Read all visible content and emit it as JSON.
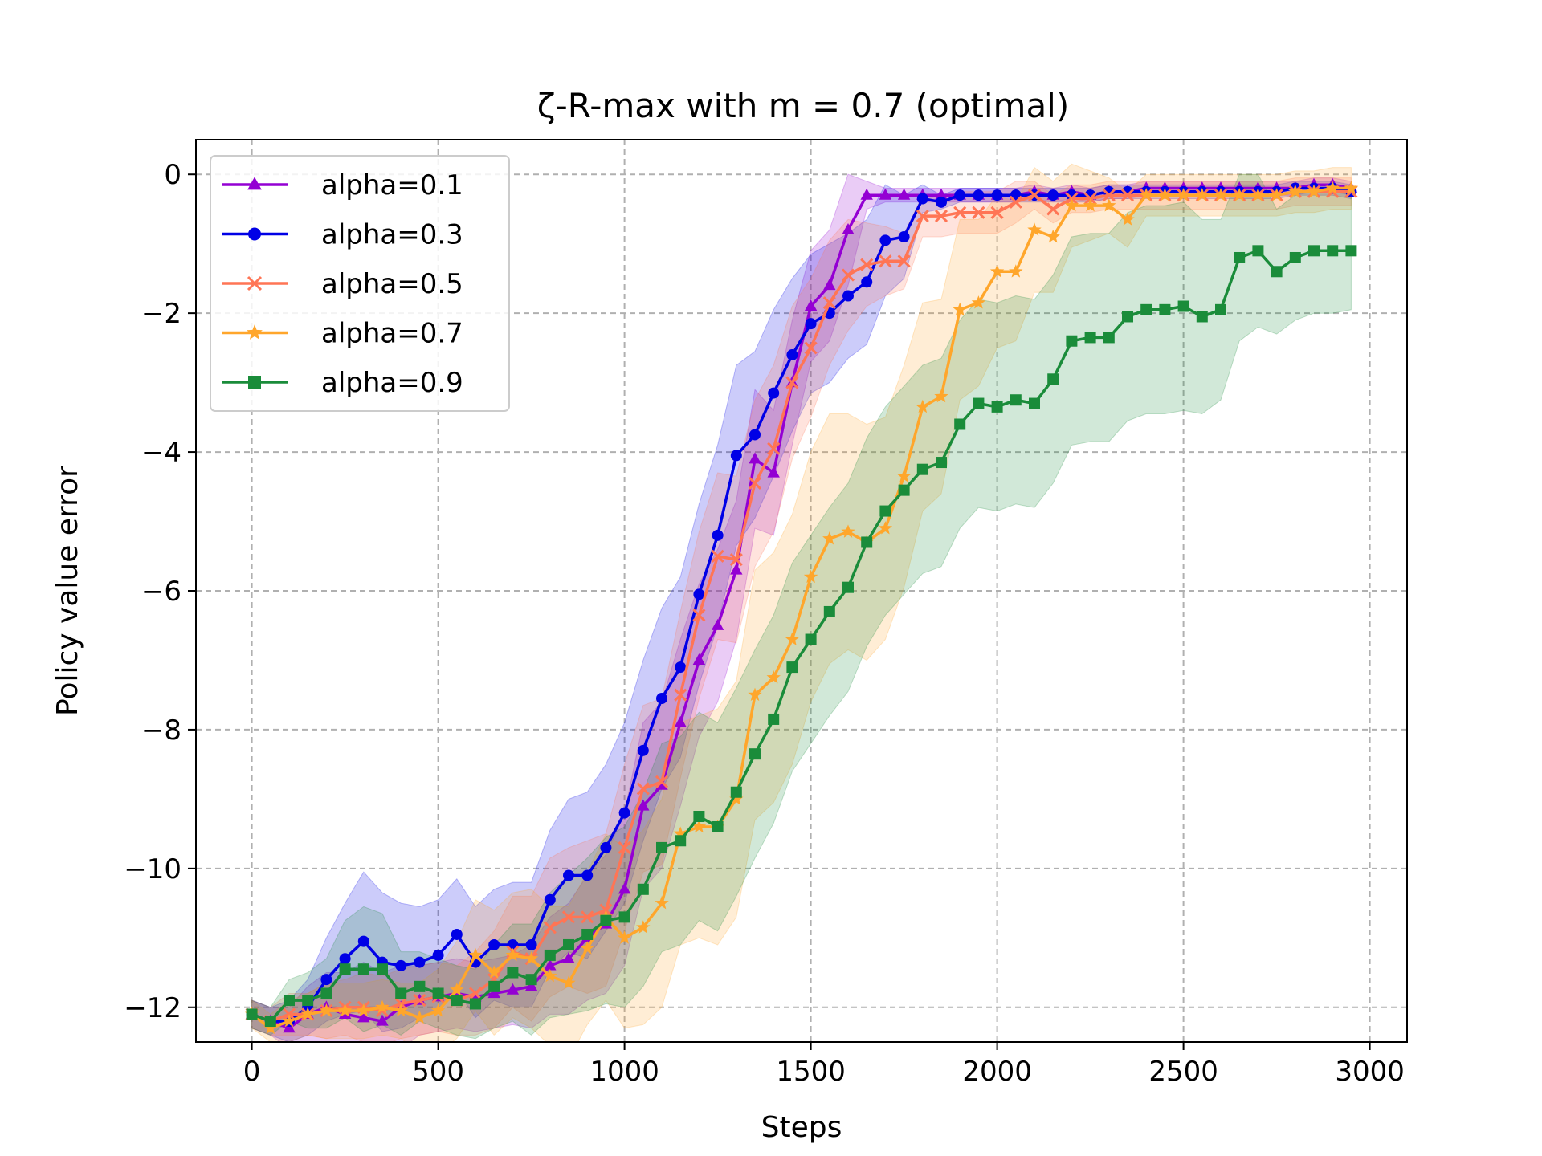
{
  "chart_data": {
    "type": "line",
    "title": "ζ-R-max with m = 0.7 (optimal)",
    "xlabel": "Steps",
    "ylabel": "Policy value error",
    "xlim": [
      -150,
      3100
    ],
    "ylim": [
      -12.5,
      0.5
    ],
    "xticks": [
      0,
      500,
      1000,
      1500,
      2000,
      2500,
      3000
    ],
    "yticks": [
      0,
      -2,
      -4,
      -6,
      -8,
      -10,
      -12
    ],
    "xtick_labels": [
      "0",
      "500",
      "1000",
      "1500",
      "2000",
      "2500",
      "3000"
    ],
    "ytick_labels": [
      "0",
      "−2",
      "−4",
      "−6",
      "−8",
      "−10",
      "−12"
    ],
    "grid": true,
    "legend_position": "upper-left",
    "x": [
      0,
      50,
      100,
      150,
      200,
      250,
      300,
      350,
      400,
      450,
      500,
      550,
      600,
      650,
      700,
      750,
      800,
      850,
      900,
      950,
      1000,
      1050,
      1100,
      1150,
      1200,
      1250,
      1300,
      1350,
      1400,
      1450,
      1500,
      1550,
      1600,
      1650,
      1700,
      1750,
      1800,
      1850,
      1900,
      1950,
      2000,
      2050,
      2100,
      2150,
      2200,
      2250,
      2300,
      2350,
      2400,
      2450,
      2500,
      2550,
      2600,
      2650,
      2700,
      2750,
      2800,
      2850,
      2900,
      2950
    ],
    "series": [
      {
        "name": "alpha=0.1",
        "color": "#9400D3",
        "marker": "triangle",
        "values": [
          -12.1,
          -12.2,
          -12.3,
          -12.1,
          -12.0,
          -12.1,
          -12.15,
          -12.2,
          -12.0,
          -11.9,
          -11.85,
          -11.8,
          -11.85,
          -11.8,
          -11.75,
          -11.7,
          -11.4,
          -11.3,
          -11.0,
          -10.8,
          -10.3,
          -9.1,
          -8.8,
          -7.9,
          -7.0,
          -6.5,
          -5.7,
          -4.1,
          -4.3,
          -3.0,
          -1.9,
          -1.6,
          -0.8,
          -0.3,
          -0.3,
          -0.3,
          -0.3,
          -0.3,
          -0.3,
          -0.3,
          -0.3,
          -0.3,
          -0.25,
          -0.3,
          -0.25,
          -0.3,
          -0.25,
          -0.25,
          -0.2,
          -0.2,
          -0.2,
          -0.2,
          -0.2,
          -0.2,
          -0.2,
          -0.2,
          -0.2,
          -0.15,
          -0.15,
          -0.2
        ],
        "band_halfwidth": [
          0.2,
          0.2,
          0.3,
          0.4,
          0.5,
          0.6,
          0.8,
          0.7,
          0.6,
          0.5,
          0.5,
          0.5,
          0.5,
          0.5,
          0.5,
          0.6,
          0.7,
          0.8,
          0.9,
          1.0,
          1.1,
          1.2,
          1.2,
          1.2,
          1.1,
          1.1,
          1.0,
          1.0,
          0.9,
          0.9,
          0.8,
          0.8,
          0.8,
          0.2,
          0.1,
          0.1,
          0.1,
          0.1,
          0.1,
          0.1,
          0.1,
          0.1,
          0.1,
          0.1,
          0.1,
          0.1,
          0.1,
          0.1,
          0.1,
          0.1,
          0.1,
          0.1,
          0.1,
          0.1,
          0.1,
          0.1,
          0.1,
          0.1,
          0.1,
          0.1
        ]
      },
      {
        "name": "alpha=0.3",
        "color": "#0000E6",
        "marker": "circle",
        "values": [
          -12.1,
          -12.2,
          -12.2,
          -12.0,
          -11.6,
          -11.3,
          -11.05,
          -11.35,
          -11.4,
          -11.35,
          -11.25,
          -10.95,
          -11.35,
          -11.1,
          -11.1,
          -11.1,
          -10.45,
          -10.1,
          -10.1,
          -9.7,
          -9.2,
          -8.3,
          -7.55,
          -7.1,
          -6.05,
          -5.2,
          -4.05,
          -3.75,
          -3.15,
          -2.6,
          -2.15,
          -2.0,
          -1.75,
          -1.55,
          -0.95,
          -0.9,
          -0.35,
          -0.4,
          -0.3,
          -0.3,
          -0.3,
          -0.3,
          -0.3,
          -0.3,
          -0.3,
          -0.3,
          -0.25,
          -0.25,
          -0.25,
          -0.25,
          -0.25,
          -0.25,
          -0.25,
          -0.25,
          -0.25,
          -0.25,
          -0.2,
          -0.2,
          -0.2,
          -0.25
        ],
        "band_halfwidth": [
          0.2,
          0.2,
          0.3,
          0.4,
          0.6,
          0.8,
          1.0,
          1.0,
          0.9,
          0.8,
          0.8,
          0.8,
          0.8,
          0.8,
          0.9,
          0.9,
          1.0,
          1.1,
          1.2,
          1.2,
          1.3,
          1.3,
          1.3,
          1.3,
          1.3,
          1.3,
          1.3,
          1.2,
          1.2,
          1.1,
          1.0,
          1.0,
          0.9,
          0.9,
          0.8,
          0.6,
          0.2,
          0.1,
          0.1,
          0.1,
          0.1,
          0.1,
          0.1,
          0.1,
          0.1,
          0.1,
          0.1,
          0.1,
          0.1,
          0.1,
          0.1,
          0.1,
          0.1,
          0.1,
          0.1,
          0.1,
          0.1,
          0.1,
          0.1,
          0.1
        ]
      },
      {
        "name": "alpha=0.5",
        "color": "#FF7555",
        "marker": "x",
        "values": [
          -12.1,
          -12.2,
          -12.1,
          -12.1,
          -12.05,
          -12.0,
          -12.0,
          -12.05,
          -11.95,
          -11.9,
          -11.85,
          -11.9,
          -11.8,
          -11.6,
          -11.2,
          -11.3,
          -10.85,
          -10.7,
          -10.7,
          -10.6,
          -9.7,
          -8.85,
          -8.75,
          -7.5,
          -6.35,
          -5.5,
          -5.55,
          -4.45,
          -3.95,
          -3.0,
          -2.5,
          -1.85,
          -1.45,
          -1.3,
          -1.25,
          -1.25,
          -0.6,
          -0.6,
          -0.55,
          -0.55,
          -0.55,
          -0.4,
          -0.3,
          -0.5,
          -0.35,
          -0.35,
          -0.3,
          -0.3,
          -0.3,
          -0.3,
          -0.3,
          -0.3,
          -0.3,
          -0.3,
          -0.3,
          -0.3,
          -0.25,
          -0.25,
          -0.25,
          -0.25
        ],
        "band_halfwidth": [
          0.2,
          0.2,
          0.3,
          0.3,
          0.4,
          0.4,
          0.5,
          0.5,
          0.5,
          0.5,
          0.5,
          0.5,
          0.6,
          0.7,
          0.8,
          0.9,
          1.0,
          1.0,
          1.1,
          1.1,
          1.2,
          1.2,
          1.2,
          1.2,
          1.2,
          1.2,
          1.2,
          1.2,
          1.2,
          1.1,
          1.0,
          0.9,
          0.8,
          0.6,
          0.5,
          0.4,
          0.3,
          0.3,
          0.3,
          0.3,
          0.3,
          0.3,
          0.2,
          0.2,
          0.2,
          0.2,
          0.2,
          0.2,
          0.2,
          0.2,
          0.2,
          0.2,
          0.2,
          0.2,
          0.2,
          0.2,
          0.2,
          0.2,
          0.2,
          0.2
        ]
      },
      {
        "name": "alpha=0.7",
        "color": "#FFA62B",
        "marker": "star",
        "values": [
          -12.1,
          -12.3,
          -12.2,
          -12.1,
          -12.05,
          -12.05,
          -12.05,
          -12.0,
          -12.05,
          -12.15,
          -12.05,
          -11.75,
          -11.25,
          -11.5,
          -11.25,
          -11.3,
          -11.55,
          -11.65,
          -11.15,
          -10.7,
          -11.0,
          -10.85,
          -10.5,
          -9.5,
          -9.4,
          -9.4,
          -9.0,
          -7.5,
          -7.25,
          -6.7,
          -5.8,
          -5.25,
          -5.15,
          -5.3,
          -5.1,
          -4.35,
          -3.35,
          -3.2,
          -1.95,
          -1.85,
          -1.4,
          -1.4,
          -0.8,
          -0.9,
          -0.45,
          -0.45,
          -0.45,
          -0.65,
          -0.3,
          -0.3,
          -0.3,
          -0.3,
          -0.3,
          -0.3,
          -0.3,
          -0.3,
          -0.25,
          -0.25,
          -0.2,
          -0.2
        ],
        "band_halfwidth": [
          0.2,
          0.2,
          0.3,
          0.3,
          0.4,
          0.4,
          0.4,
          0.4,
          0.4,
          0.5,
          0.6,
          0.7,
          0.8,
          0.9,
          0.9,
          1.0,
          1.0,
          1.1,
          1.1,
          1.2,
          1.3,
          1.4,
          1.5,
          1.6,
          1.6,
          1.7,
          1.7,
          1.8,
          1.8,
          1.8,
          1.8,
          1.8,
          1.7,
          1.7,
          1.6,
          1.6,
          1.5,
          1.4,
          1.3,
          1.2,
          1.1,
          1.0,
          0.9,
          0.8,
          0.6,
          0.5,
          0.4,
          0.4,
          0.3,
          0.3,
          0.3,
          0.3,
          0.3,
          0.3,
          0.3,
          0.3,
          0.3,
          0.3,
          0.3,
          0.3
        ]
      },
      {
        "name": "alpha=0.9",
        "color": "#1A8C3A",
        "marker": "square",
        "values": [
          -12.1,
          -12.2,
          -11.9,
          -11.9,
          -11.8,
          -11.45,
          -11.45,
          -11.45,
          -11.8,
          -11.7,
          -11.8,
          -11.9,
          -11.95,
          -11.7,
          -11.5,
          -11.6,
          -11.25,
          -11.1,
          -10.95,
          -10.75,
          -10.7,
          -10.3,
          -9.7,
          -9.6,
          -9.25,
          -9.4,
          -8.9,
          -8.35,
          -7.85,
          -7.1,
          -6.7,
          -6.3,
          -5.95,
          -5.3,
          -4.85,
          -4.55,
          -4.25,
          -4.15,
          -3.6,
          -3.3,
          -3.35,
          -3.25,
          -3.3,
          -2.95,
          -2.4,
          -2.35,
          -2.35,
          -2.05,
          -1.95,
          -1.95,
          -1.9,
          -2.05,
          -1.95,
          -1.2,
          -1.1,
          -1.4,
          -1.2,
          -1.1,
          -1.1,
          -1.1
        ],
        "band_halfwidth": [
          0.2,
          0.2,
          0.3,
          0.4,
          0.5,
          0.7,
          0.9,
          0.8,
          0.6,
          0.5,
          0.5,
          0.5,
          0.5,
          0.6,
          0.7,
          0.8,
          0.9,
          1.0,
          1.1,
          1.2,
          1.3,
          1.4,
          1.5,
          1.5,
          1.5,
          1.5,
          1.5,
          1.5,
          1.5,
          1.5,
          1.5,
          1.5,
          1.5,
          1.5,
          1.5,
          1.5,
          1.5,
          1.5,
          1.5,
          1.5,
          1.5,
          1.5,
          1.5,
          1.5,
          1.5,
          1.5,
          1.5,
          1.5,
          1.5,
          1.5,
          1.5,
          1.4,
          1.3,
          1.2,
          1.1,
          0.9,
          0.9,
          0.9,
          0.9,
          0.85
        ]
      }
    ]
  }
}
